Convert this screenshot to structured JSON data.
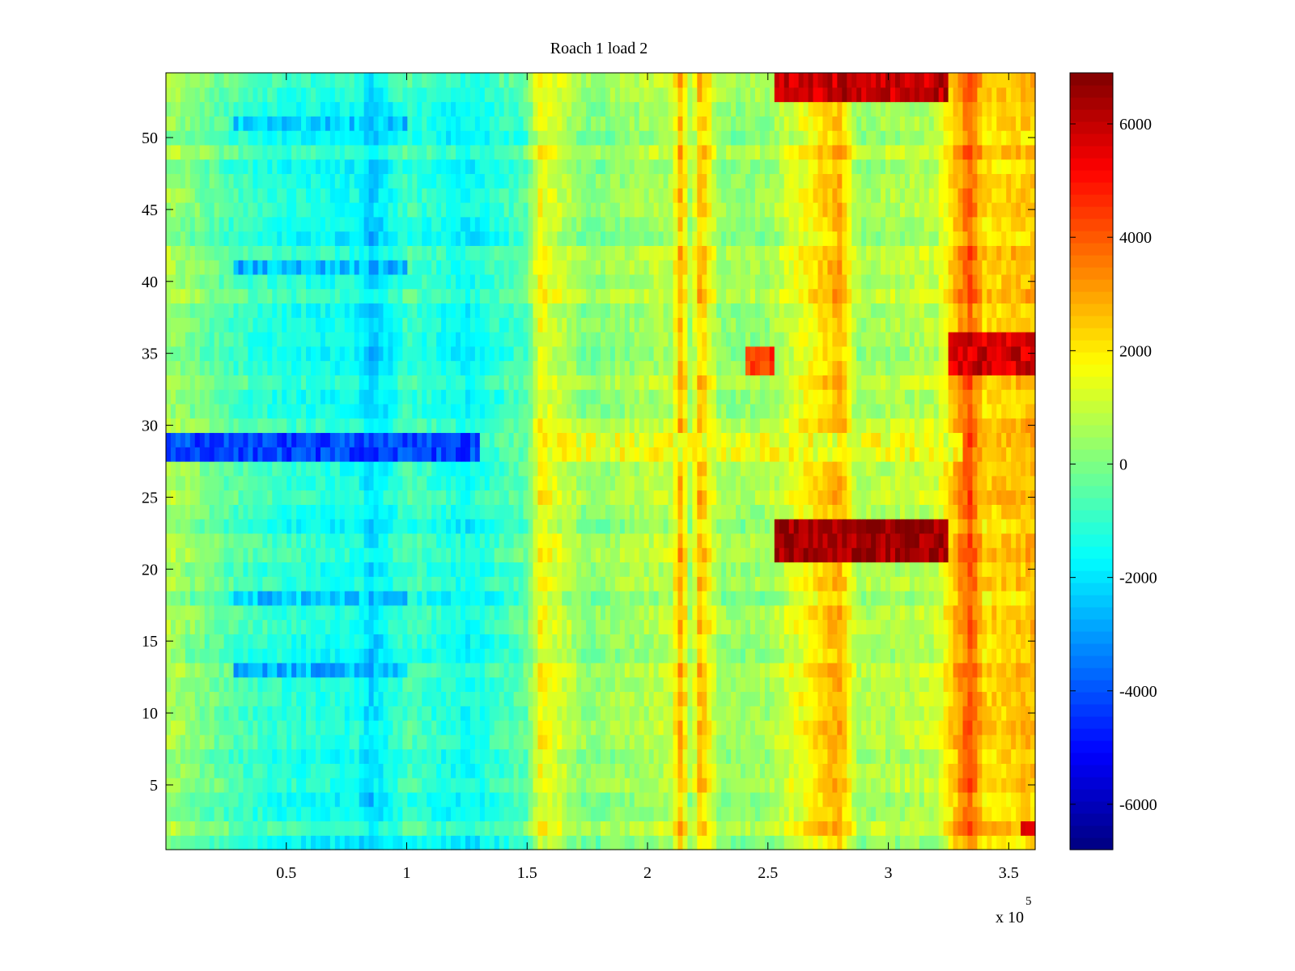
{
  "chart_data": {
    "type": "heatmap",
    "title": "Roach 1 load 2",
    "xlabel": "",
    "ylabel": "",
    "x_multiplier_base": "x 10",
    "x_multiplier_exponent": "5",
    "xlim": [
      0,
      3.61
    ],
    "ylim": [
      0.5,
      54.5
    ],
    "x_ticks": [
      0.5,
      1,
      1.5,
      2,
      2.5,
      3,
      3.5
    ],
    "x_tick_labels": [
      "0.5",
      "1",
      "1.5",
      "2",
      "2.5",
      "3",
      "3.5"
    ],
    "y_ticks": [
      5,
      10,
      15,
      20,
      25,
      30,
      35,
      40,
      45,
      50
    ],
    "y_tick_labels": [
      "5",
      "10",
      "15",
      "20",
      "25",
      "30",
      "35",
      "40",
      "45",
      "50"
    ],
    "rows": 54,
    "colormap": "jet",
    "clim": [
      -6800,
      6900
    ],
    "colorbar": {
      "ticks": [
        6000,
        4000,
        2000,
        0,
        -2000,
        -4000,
        -6000
      ],
      "tick_labels": [
        "6000",
        "4000",
        "2000",
        "0",
        "-2000",
        "-4000",
        "-6000"
      ]
    },
    "column_profile": [
      {
        "x": 0.0,
        "value": 600
      },
      {
        "x": 0.28,
        "value": -700
      },
      {
        "x": 0.5,
        "value": -1200
      },
      {
        "x": 0.8,
        "value": -1500
      },
      {
        "x": 0.85,
        "value": -2300
      },
      {
        "x": 1.0,
        "value": -800
      },
      {
        "x": 1.25,
        "value": -1600
      },
      {
        "x": 1.5,
        "value": -500
      },
      {
        "x": 1.55,
        "value": 1700
      },
      {
        "x": 1.75,
        "value": 100
      },
      {
        "x": 2.1,
        "value": 800
      },
      {
        "x": 2.14,
        "value": 3000
      },
      {
        "x": 2.18,
        "value": 200
      },
      {
        "x": 2.22,
        "value": 2800
      },
      {
        "x": 2.3,
        "value": 300
      },
      {
        "x": 2.5,
        "value": 400
      },
      {
        "x": 2.8,
        "value": 2900
      },
      {
        "x": 2.87,
        "value": 500
      },
      {
        "x": 3.2,
        "value": 900
      },
      {
        "x": 3.34,
        "value": 4000
      },
      {
        "x": 3.4,
        "value": 2200
      },
      {
        "x": 3.61,
        "value": 2600
      }
    ],
    "row_bands": [
      {
        "y_range": [
          27.5,
          29.5
        ],
        "x_range": [
          0.0,
          1.3
        ],
        "value": -4200
      },
      {
        "y_range": [
          27.5,
          29.5
        ],
        "x_range": [
          1.6,
          3.3
        ],
        "value": 1500
      },
      {
        "y_range": [
          20.5,
          23.5
        ],
        "x_range": [
          2.52,
          3.25
        ],
        "value": 6600
      },
      {
        "y_range": [
          52.5,
          54.5
        ],
        "x_range": [
          2.52,
          3.25
        ],
        "value": 6000
      },
      {
        "y_range": [
          33.5,
          35.5
        ],
        "x_range": [
          2.4,
          2.52
        ],
        "value": 4500
      },
      {
        "y_range": [
          33.5,
          36.5
        ],
        "x_range": [
          3.25,
          3.61
        ],
        "value": 5800
      },
      {
        "y_range": [
          1.5,
          2.5
        ],
        "x_range": [
          3.54,
          3.61
        ],
        "value": 5500
      },
      {
        "y_range": [
          12.5,
          13.5
        ],
        "x_range": [
          0.28,
          1.0
        ],
        "value": -2600
      },
      {
        "y_range": [
          40.5,
          41.5
        ],
        "x_range": [
          0.28,
          1.0
        ],
        "value": -2600
      },
      {
        "y_range": [
          17.5,
          18.5
        ],
        "x_range": [
          0.28,
          1.0
        ],
        "value": -2300
      },
      {
        "y_range": [
          50.5,
          51.5
        ],
        "x_range": [
          0.28,
          1.0
        ],
        "value": -2300
      }
    ]
  }
}
